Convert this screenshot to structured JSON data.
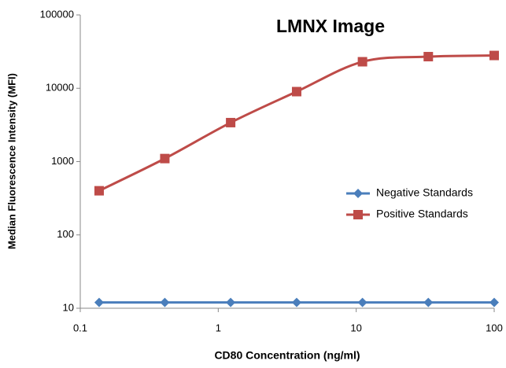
{
  "chart_data": {
    "type": "line",
    "title": "LMNX Image",
    "x_label": "CD80 Concentration (ng/ml)",
    "y_label": "Median Fluorescence Intensity (MFI)",
    "x": [
      0.137,
      0.41,
      1.23,
      3.7,
      11.1,
      33.3,
      100
    ],
    "series": [
      {
        "name": "Negative Standards",
        "color": "#4a7ebb",
        "marker": "diamond",
        "values": [
          12,
          12,
          12,
          12,
          12,
          12,
          12
        ]
      },
      {
        "name": "Positive Standards",
        "color": "#be4b48",
        "marker": "square",
        "values": [
          400,
          1100,
          3400,
          9000,
          23000,
          27000,
          28000
        ]
      }
    ],
    "x_scale": "log",
    "y_scale": "log",
    "xlim": [
      0.1,
      100
    ],
    "xticks": [
      0.1,
      1,
      10,
      100
    ],
    "ylim": [
      10,
      100000
    ],
    "yticks": [
      10,
      100,
      1000,
      10000,
      100000
    ],
    "smooth": true,
    "grid": false,
    "legend_position": "right"
  }
}
